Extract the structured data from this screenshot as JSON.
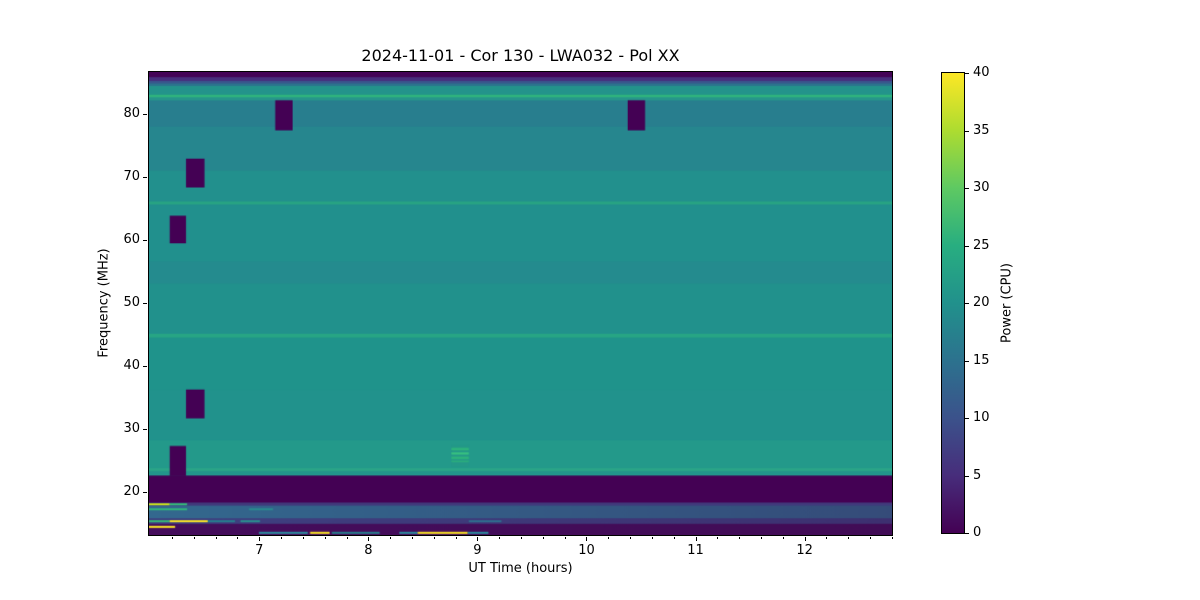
{
  "chart_data": {
    "type": "heatmap",
    "title": "2024-11-01 - Cor 130 - LWA032 - Pol XX",
    "xlabel": "UT Time (hours)",
    "ylabel": "Frequency (MHz)",
    "xlim": [
      5.98,
      12.81
    ],
    "ylim": [
      13.0,
      86.8
    ],
    "x_major_ticks": [
      7,
      8,
      9,
      10,
      11,
      12
    ],
    "x_minor_tick_step": 0.2,
    "y_major_ticks": [
      20,
      30,
      40,
      50,
      60,
      70,
      80
    ],
    "grid": false,
    "colorbar": {
      "label": "Power (CPU)",
      "vmin": 0,
      "vmax": 40,
      "ticks": [
        0,
        5,
        10,
        15,
        20,
        25,
        30,
        35,
        40
      ],
      "colormap": "viridis",
      "gradient_stops": [
        [
          0,
          "#440154"
        ],
        [
          0.125,
          "#472d7b"
        ],
        [
          0.25,
          "#3b528b"
        ],
        [
          0.375,
          "#2c728e"
        ],
        [
          0.5,
          "#21918c"
        ],
        [
          0.625,
          "#28ae80"
        ],
        [
          0.75,
          "#5ec962"
        ],
        [
          0.875,
          "#addc30"
        ],
        [
          1,
          "#fde725"
        ]
      ]
    },
    "background_rows": [
      {
        "f_lo": 85.9,
        "f_hi": 86.8,
        "color": "#440457"
      },
      {
        "f_lo": 85.3,
        "f_hi": 85.9,
        "color": "#472f7d"
      },
      {
        "f_lo": 84.9,
        "f_hi": 85.3,
        "color": "#39568c"
      },
      {
        "f_lo": 84.5,
        "f_hi": 84.9,
        "color": "#2c748e"
      },
      {
        "f_lo": 83.1,
        "f_hi": 84.5,
        "color": "#23938b"
      },
      {
        "f_lo": 82.7,
        "f_hi": 83.1,
        "color": "#2fb47c"
      },
      {
        "f_lo": 82.2,
        "f_hi": 82.7,
        "color": "#26968b"
      },
      {
        "f_lo": 78.0,
        "f_hi": 82.2,
        "color": "#287e8e"
      },
      {
        "f_lo": 71.0,
        "f_hi": 78.0,
        "color": "#26868e"
      },
      {
        "f_lo": 66.1,
        "f_hi": 71.0,
        "color": "#22908d"
      },
      {
        "f_lo": 65.6,
        "f_hi": 66.1,
        "color": "#27a283"
      },
      {
        "f_lo": 56.5,
        "f_hi": 65.6,
        "color": "#21908d"
      },
      {
        "f_lo": 53.0,
        "f_hi": 56.5,
        "color": "#248b8e"
      },
      {
        "f_lo": 45.0,
        "f_hi": 53.0,
        "color": "#21918c"
      },
      {
        "f_lo": 44.4,
        "f_hi": 45.0,
        "color": "#27a584"
      },
      {
        "f_lo": 36.0,
        "f_hi": 44.4,
        "color": "#1f938b"
      },
      {
        "f_lo": 28.0,
        "f_hi": 36.0,
        "color": "#21928c"
      },
      {
        "f_lo": 23.6,
        "f_hi": 28.0,
        "color": "#23998a"
      },
      {
        "f_lo": 23.1,
        "f_hi": 23.6,
        "color": "#2aa487"
      },
      {
        "f_lo": 22.4,
        "f_hi": 23.1,
        "color": "#22958b"
      },
      {
        "f_lo": 18.1,
        "f_hi": 22.4,
        "color": "#440154"
      },
      {
        "f_lo": 17.6,
        "f_hi": 18.1,
        "color": "#413a7c"
      },
      {
        "f_lo": 15.6,
        "f_hi": 17.6,
        "color": "#33688e"
      },
      {
        "f_lo": 14.7,
        "f_hi": 15.6,
        "color": "#3f4181"
      },
      {
        "f_lo": 13.0,
        "f_hi": 14.7,
        "color": "#450d5c"
      }
    ],
    "dropout_color": "#440154",
    "dropouts": [
      {
        "t0": 6.17,
        "t1": 6.32,
        "f0": 59.5,
        "f1": 63.9
      },
      {
        "t0": 6.17,
        "t1": 6.32,
        "f0": 22.4,
        "f1": 27.2
      },
      {
        "t0": 6.32,
        "t1": 6.49,
        "f0": 68.4,
        "f1": 73.0
      },
      {
        "t0": 6.32,
        "t1": 6.49,
        "f0": 31.6,
        "f1": 36.2
      },
      {
        "t0": 7.14,
        "t1": 7.3,
        "f0": 77.5,
        "f1": 82.3
      },
      {
        "t0": 10.38,
        "t1": 10.54,
        "f0": 77.5,
        "f1": 82.3
      }
    ],
    "bright_patch": {
      "t0": 8.76,
      "t1": 8.92,
      "f0": 23.9,
      "f1": 27.3,
      "base_color": "#249887",
      "stripes": [
        {
          "f_lo": 26.5,
          "f_hi": 26.9,
          "color": "#2db47c"
        },
        {
          "f_lo": 25.8,
          "f_hi": 26.2,
          "color": "#35bd80"
        },
        {
          "f_lo": 25.1,
          "f_hi": 25.5,
          "color": "#2db47c"
        },
        {
          "f_lo": 24.6,
          "f_hi": 24.9,
          "color": "#2aab7e"
        }
      ]
    },
    "rfi_streaks": [
      {
        "f": 17.9,
        "segments": [
          {
            "t0": 5.98,
            "t1": 6.17,
            "color": "#c8e020"
          },
          {
            "t0": 6.17,
            "t1": 6.33,
            "color": "#35b779"
          }
        ]
      },
      {
        "f": 17.1,
        "segments": [
          {
            "t0": 5.98,
            "t1": 6.33,
            "color": "#31b57b"
          },
          {
            "t0": 6.9,
            "t1": 7.12,
            "color": "#2a8a8e"
          }
        ]
      },
      {
        "f": 15.2,
        "segments": [
          {
            "t0": 5.98,
            "t1": 6.17,
            "color": "#35b779"
          },
          {
            "t0": 6.17,
            "t1": 6.52,
            "color": "#fde725"
          },
          {
            "t0": 6.52,
            "t1": 6.77,
            "color": "#277f8e"
          },
          {
            "t0": 6.82,
            "t1": 7.0,
            "color": "#2a8f8e"
          },
          {
            "t0": 8.92,
            "t1": 9.22,
            "color": "#2f6f8e"
          }
        ]
      },
      {
        "f": 14.3,
        "segments": [
          {
            "t0": 5.98,
            "t1": 6.22,
            "color": "#fde725"
          }
        ]
      },
      {
        "f": 13.35,
        "segments": [
          {
            "t0": 6.99,
            "t1": 7.44,
            "color": "#2c8fa0"
          },
          {
            "t0": 7.46,
            "t1": 7.64,
            "color": "#fde725"
          },
          {
            "t0": 7.66,
            "t1": 8.1,
            "color": "#26808e"
          },
          {
            "t0": 8.28,
            "t1": 8.45,
            "color": "#2c8fa0"
          },
          {
            "t0": 8.45,
            "t1": 8.91,
            "color": "#fde725"
          },
          {
            "t0": 8.91,
            "t1": 9.1,
            "color": "#2c8fa0"
          }
        ]
      }
    ],
    "right_shade": {
      "f_lo": 13.0,
      "f_hi": 17.7,
      "color_rgba": "rgba(58,10,74,0.30)"
    }
  }
}
